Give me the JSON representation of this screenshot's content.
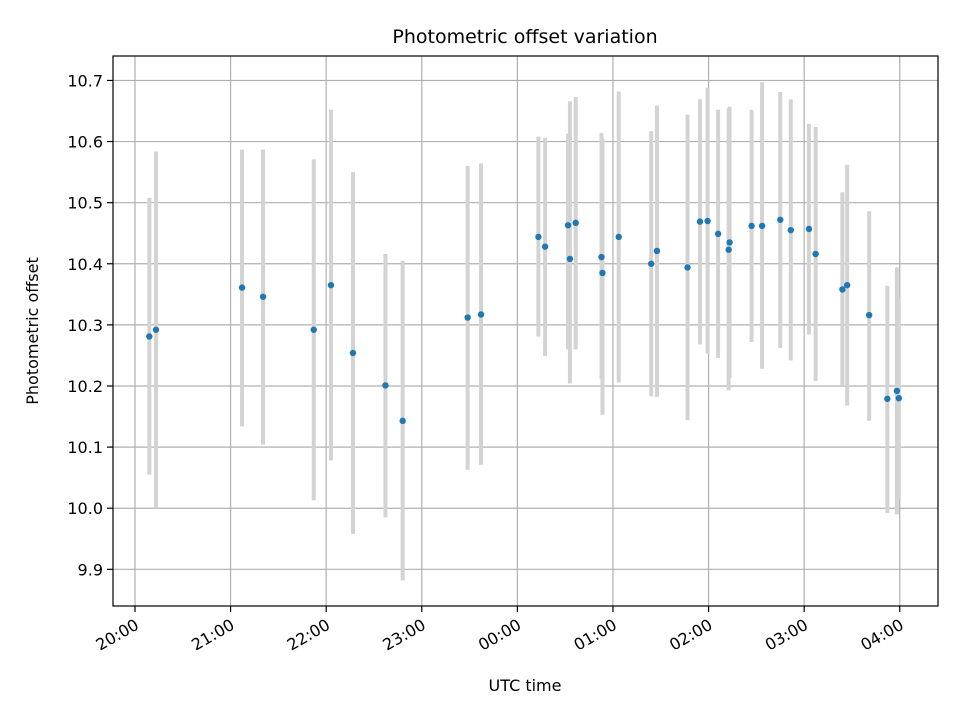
{
  "chart_data": {
    "type": "scatter",
    "title": "Photometric offset variation",
    "xlabel": "UTC time",
    "ylabel": "Photometric offset",
    "x_unit": "hours",
    "xlim": [
      -4.23,
      4.4
    ],
    "ylim": [
      9.84,
      10.74
    ],
    "grid": true,
    "x_ticks": [
      {
        "value": -4,
        "label": "20:00"
      },
      {
        "value": -3,
        "label": "21:00"
      },
      {
        "value": -2,
        "label": "22:00"
      },
      {
        "value": -1,
        "label": "23:00"
      },
      {
        "value": 0,
        "label": "00:00"
      },
      {
        "value": 1,
        "label": "01:00"
      },
      {
        "value": 2,
        "label": "02:00"
      },
      {
        "value": 3,
        "label": "03:00"
      },
      {
        "value": 4,
        "label": "04:00"
      }
    ],
    "y_ticks": [
      {
        "value": 9.9,
        "label": "9.9"
      },
      {
        "value": 10.0,
        "label": "10.0"
      },
      {
        "value": 10.1,
        "label": "10.1"
      },
      {
        "value": 10.2,
        "label": "10.2"
      },
      {
        "value": 10.3,
        "label": "10.3"
      },
      {
        "value": 10.4,
        "label": "10.4"
      },
      {
        "value": 10.5,
        "label": "10.5"
      },
      {
        "value": 10.6,
        "label": "10.6"
      },
      {
        "value": 10.7,
        "label": "10.7"
      }
    ],
    "points": [
      {
        "t": -3.85,
        "y": 10.281,
        "lo": 10.055,
        "hi": 10.508
      },
      {
        "t": -3.78,
        "y": 10.292,
        "lo": 10.0,
        "hi": 10.584
      },
      {
        "t": -2.88,
        "y": 10.361,
        "lo": 10.134,
        "hi": 10.587
      },
      {
        "t": -2.66,
        "y": 10.346,
        "lo": 10.104,
        "hi": 10.587
      },
      {
        "t": -2.13,
        "y": 10.292,
        "lo": 10.013,
        "hi": 10.571
      },
      {
        "t": -1.95,
        "y": 10.365,
        "lo": 10.078,
        "hi": 10.652
      },
      {
        "t": -1.72,
        "y": 10.254,
        "lo": 9.958,
        "hi": 10.55
      },
      {
        "t": -1.38,
        "y": 10.201,
        "lo": 9.985,
        "hi": 10.416
      },
      {
        "t": -1.2,
        "y": 10.143,
        "lo": 9.882,
        "hi": 10.405
      },
      {
        "t": -0.52,
        "y": 10.312,
        "lo": 10.063,
        "hi": 10.56
      },
      {
        "t": -0.38,
        "y": 10.317,
        "lo": 10.071,
        "hi": 10.564
      },
      {
        "t": 0.22,
        "y": 10.444,
        "lo": 10.281,
        "hi": 10.608
      },
      {
        "t": 0.29,
        "y": 10.428,
        "lo": 10.249,
        "hi": 10.606
      },
      {
        "t": 0.53,
        "y": 10.463,
        "lo": 10.26,
        "hi": 10.613
      },
      {
        "t": 0.55,
        "y": 10.408,
        "lo": 10.204,
        "hi": 10.666
      },
      {
        "t": 0.61,
        "y": 10.467,
        "lo": 10.26,
        "hi": 10.673
      },
      {
        "t": 0.88,
        "y": 10.411,
        "lo": 10.211,
        "hi": 10.614
      },
      {
        "t": 0.89,
        "y": 10.385,
        "lo": 10.153,
        "hi": 10.605
      },
      {
        "t": 1.06,
        "y": 10.444,
        "lo": 10.206,
        "hi": 10.682
      },
      {
        "t": 1.4,
        "y": 10.4,
        "lo": 10.183,
        "hi": 10.617
      },
      {
        "t": 1.46,
        "y": 10.421,
        "lo": 10.182,
        "hi": 10.659
      },
      {
        "t": 1.78,
        "y": 10.394,
        "lo": 10.144,
        "hi": 10.644
      },
      {
        "t": 1.91,
        "y": 10.469,
        "lo": 10.268,
        "hi": 10.669
      },
      {
        "t": 1.99,
        "y": 10.47,
        "lo": 10.253,
        "hi": 10.688
      },
      {
        "t": 2.1,
        "y": 10.449,
        "lo": 10.246,
        "hi": 10.652
      },
      {
        "t": 2.21,
        "y": 10.423,
        "lo": 10.193,
        "hi": 10.654
      },
      {
        "t": 2.22,
        "y": 10.435,
        "lo": 10.213,
        "hi": 10.657
      },
      {
        "t": 2.45,
        "y": 10.462,
        "lo": 10.272,
        "hi": 10.652
      },
      {
        "t": 2.56,
        "y": 10.462,
        "lo": 10.228,
        "hi": 10.697
      },
      {
        "t": 2.75,
        "y": 10.472,
        "lo": 10.262,
        "hi": 10.681
      },
      {
        "t": 2.86,
        "y": 10.455,
        "lo": 10.242,
        "hi": 10.669
      },
      {
        "t": 3.05,
        "y": 10.457,
        "lo": 10.284,
        "hi": 10.629
      },
      {
        "t": 3.12,
        "y": 10.416,
        "lo": 10.208,
        "hi": 10.624
      },
      {
        "t": 3.4,
        "y": 10.358,
        "lo": 10.2,
        "hi": 10.517
      },
      {
        "t": 3.45,
        "y": 10.365,
        "lo": 10.168,
        "hi": 10.562
      },
      {
        "t": 3.68,
        "y": 10.316,
        "lo": 10.143,
        "hi": 10.486
      },
      {
        "t": 3.87,
        "y": 10.179,
        "lo": 9.992,
        "hi": 10.364
      },
      {
        "t": 3.97,
        "y": 10.192,
        "lo": 9.99,
        "hi": 10.394
      },
      {
        "t": 3.99,
        "y": 10.18,
        "lo": 10.015,
        "hi": 10.345
      }
    ],
    "colors": {
      "points": "#1f77b4",
      "errorbars": "#d3d3d3",
      "grid": "#b0b0b0"
    }
  }
}
